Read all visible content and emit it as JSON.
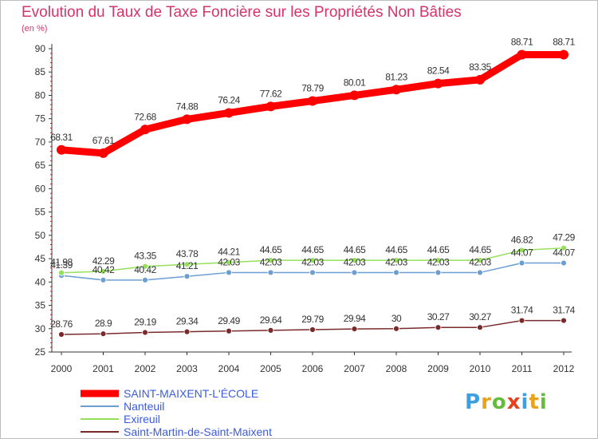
{
  "chart_data": {
    "type": "line",
    "title": "Evolution du Taux de Taxe Foncière sur les Propriétés Non Bâties",
    "ylabel": "(en %)",
    "xlabel": "",
    "categories": [
      "2000",
      "2001",
      "2002",
      "2003",
      "2004",
      "2005",
      "2006",
      "2007",
      "2008",
      "2009",
      "2010",
      "2011",
      "2012"
    ],
    "ylim": [
      25,
      90
    ],
    "yticks": [
      25,
      30,
      35,
      40,
      45,
      50,
      55,
      60,
      65,
      70,
      75,
      80,
      85,
      90
    ],
    "grid": false,
    "legend_position": "bottom-left",
    "series": [
      {
        "name": "SAINT-MAIXENT-L'ÉCOLE",
        "color": "#ff0000",
        "values": [
          68.31,
          67.61,
          72.68,
          74.88,
          76.24,
          77.62,
          78.79,
          80.01,
          81.23,
          82.54,
          83.35,
          88.71,
          88.71
        ],
        "labels": [
          "68.31",
          "67.61",
          "72.68",
          "74.88",
          "76.24",
          "77.62",
          "78.79",
          "80.01",
          "81.23",
          "82.54",
          "83.35",
          "88.71",
          "88.71"
        ]
      },
      {
        "name": "Nanteuil",
        "color": "#6c9ed1",
        "values": [
          41.39,
          40.42,
          40.42,
          41.21,
          42.03,
          42.03,
          42.03,
          42.03,
          42.03,
          42.03,
          42.03,
          44.07,
          44.07
        ],
        "labels": [
          "41.39",
          "40.42",
          "40.42",
          "41.21",
          "42.03",
          "42.03",
          "42.03",
          "42.03",
          "42.03",
          "42.03",
          "42.03",
          "44.07",
          "44.07"
        ]
      },
      {
        "name": "Exireuil",
        "color": "#94e05a",
        "values": [
          41.98,
          42.29,
          43.35,
          43.78,
          44.21,
          44.65,
          44.65,
          44.65,
          44.65,
          44.65,
          44.65,
          46.82,
          47.29
        ],
        "labels": [
          "41.98",
          "42.29",
          "43.35",
          "43.78",
          "44.21",
          "44.65",
          "44.65",
          "44.65",
          "44.65",
          "44.65",
          "44.65",
          "46.82",
          "47.29"
        ]
      },
      {
        "name": "Saint-Martin-de-Saint-Maixent",
        "color": "#7a2a2a",
        "values": [
          28.76,
          28.9,
          29.19,
          29.34,
          29.49,
          29.64,
          29.79,
          29.94,
          30,
          30.27,
          30.27,
          31.74,
          31.74
        ],
        "labels": [
          "28.76",
          "28.9",
          "29.19",
          "29.34",
          "29.49",
          "29.64",
          "29.79",
          "29.94",
          "30",
          "30.27",
          "30.27",
          "31.74",
          "31.74"
        ]
      }
    ]
  },
  "branding": {
    "logo_letters": [
      "P",
      "r",
      "o",
      "x",
      "i",
      "t",
      "i"
    ],
    "logo_colors": [
      "#3aa0e0",
      "#e8a21c",
      "#66bb3c",
      "#e8401c",
      "#3aa0e0",
      "#e8a21c",
      "#66bb3c"
    ]
  }
}
